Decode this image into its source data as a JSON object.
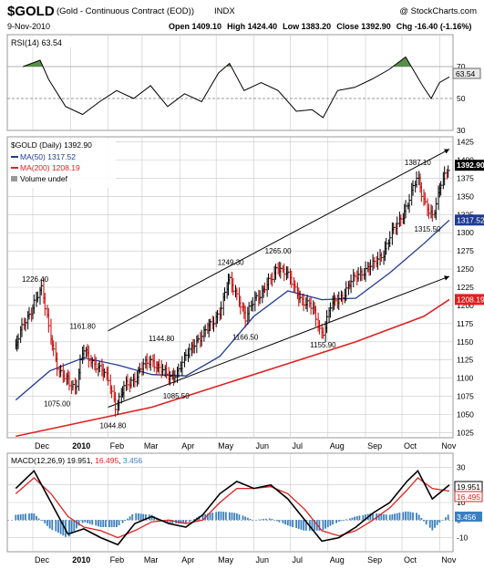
{
  "header": {
    "symbol": "$GOLD",
    "description": "(Gold - Continuous Contract (EOD))",
    "exchange": "INDX",
    "source": "@ StockCharts.com",
    "date": "9-Nov-2010",
    "quote": {
      "open_label": "Open",
      "open": "1409.10",
      "high_label": "High",
      "high": "1424.40",
      "low_label": "Low",
      "low": "1383.20",
      "close_label": "Close",
      "close": "1392.90",
      "chg_label": "Chg",
      "chg": "-16.40 (-1.16%)"
    }
  },
  "colors": {
    "price_bar_up": "#000000",
    "price_bar_down": "#cc0000",
    "ma50": "#1f3a93",
    "ma200": "#e02020",
    "rsi_fill": "#3a7d2a",
    "macd_line": "#000000",
    "signal_line": "#e02020",
    "histogram": "#3a7fc0",
    "grid": "#c8c8c8"
  },
  "rsi_panel": {
    "legend": "RSI(14) 63.54",
    "current_label": "63.54",
    "levels": [
      70,
      50,
      30
    ],
    "level_labels": [
      "70",
      "50",
      "30"
    ]
  },
  "price_panel": {
    "legend_title": "$GOLD (Daily) 1392.90",
    "legend_ma50": "MA(50) 1317.52",
    "legend_ma200": "MA(200) 1208.19",
    "legend_volume": "Volume undef",
    "last_price_label": "1392.90",
    "ma50_label": "1317.52",
    "ma200_label": "1208.19"
  },
  "macd_panel": {
    "legend_prefix": "MACD(12,26,9)",
    "legend_macd": "19.951",
    "legend_signal": "16.495",
    "legend_hist": "3.456",
    "label_macd": "19.951",
    "label_signal": "16.495",
    "label_hist": "3.456"
  },
  "chart_data": [
    {
      "type": "line",
      "panel": "rsi",
      "series": [
        {
          "name": "RSI(14)",
          "x": [
            "2009-11-23",
            "2009-12-07",
            "2009-12-14",
            "2009-12-28",
            "2010-01-11",
            "2010-01-25",
            "2010-02-08",
            "2010-02-22",
            "2010-03-08",
            "2010-03-22",
            "2010-04-05",
            "2010-04-19",
            "2010-05-03",
            "2010-05-12",
            "2010-05-24",
            "2010-06-07",
            "2010-06-21",
            "2010-07-06",
            "2010-07-19",
            "2010-07-28",
            "2010-08-09",
            "2010-08-23",
            "2010-09-06",
            "2010-09-20",
            "2010-10-04",
            "2010-10-18",
            "2010-10-25",
            "2010-11-01",
            "2010-11-09"
          ],
          "values": [
            70,
            74,
            62,
            45,
            40,
            48,
            55,
            50,
            58,
            45,
            53,
            48,
            66,
            72,
            55,
            60,
            55,
            42,
            43,
            38,
            55,
            57,
            62,
            68,
            76,
            58,
            50,
            60,
            63.54
          ]
        }
      ],
      "ylim": [
        30,
        90
      ]
    },
    {
      "type": "bar",
      "panel": "price",
      "title": "$GOLD (Daily) 1392.90",
      "x_tick_labels": [
        "Dec",
        "2010",
        "Feb",
        "Mar",
        "Apr",
        "May",
        "Jun",
        "Jul",
        "Aug",
        "Sep",
        "Oct",
        "Nov"
      ],
      "x_tick_dates": [
        "2009-12-01",
        "2010-01-01",
        "2010-02-01",
        "2010-03-01",
        "2010-04-01",
        "2010-05-01",
        "2010-06-01",
        "2010-07-01",
        "2010-08-01",
        "2010-09-01",
        "2010-10-01",
        "2010-11-01"
      ],
      "y_ticks": [
        1025,
        1050,
        1075,
        1100,
        1125,
        1150,
        1175,
        1200,
        1225,
        1250,
        1275,
        1300,
        1325,
        1350,
        1375,
        1400,
        1425
      ],
      "ylim": [
        1018,
        1432
      ],
      "close_series": {
        "x": [
          "2009-11-17",
          "2009-11-24",
          "2009-12-02",
          "2009-12-09",
          "2009-12-16",
          "2009-12-23",
          "2009-12-30",
          "2010-01-06",
          "2010-01-12",
          "2010-01-19",
          "2010-01-26",
          "2010-02-02",
          "2010-02-08",
          "2010-02-16",
          "2010-02-23",
          "2010-03-02",
          "2010-03-09",
          "2010-03-17",
          "2010-03-24",
          "2010-03-31",
          "2010-04-07",
          "2010-04-14",
          "2010-04-21",
          "2010-04-28",
          "2010-05-05",
          "2010-05-12",
          "2010-05-19",
          "2010-05-26",
          "2010-06-02",
          "2010-06-09",
          "2010-06-16",
          "2010-06-21",
          "2010-06-28",
          "2010-07-06",
          "2010-07-13",
          "2010-07-20",
          "2010-07-28",
          "2010-08-04",
          "2010-08-11",
          "2010-08-18",
          "2010-08-25",
          "2010-09-01",
          "2010-09-08",
          "2010-09-15",
          "2010-09-22",
          "2010-09-29",
          "2010-10-06",
          "2010-10-14",
          "2010-10-20",
          "2010-10-27",
          "2010-11-03",
          "2010-11-09"
        ],
        "values": [
          1140,
          1175,
          1200,
          1222,
          1160,
          1105,
          1100,
          1085,
          1140,
          1125,
          1110,
          1100,
          1060,
          1090,
          1100,
          1115,
          1125,
          1112,
          1100,
          1110,
          1130,
          1150,
          1160,
          1175,
          1195,
          1235,
          1215,
          1180,
          1210,
          1220,
          1235,
          1255,
          1245,
          1220,
          1205,
          1195,
          1160,
          1200,
          1210,
          1225,
          1240,
          1250,
          1255,
          1270,
          1295,
          1315,
          1340,
          1375,
          1345,
          1320,
          1370,
          1392.9
        ]
      },
      "ma50_series": {
        "name": "MA(50)",
        "x": [
          "2009-11-17",
          "2009-12-15",
          "2010-01-12",
          "2010-02-09",
          "2010-03-09",
          "2010-04-06",
          "2010-05-04",
          "2010-06-01",
          "2010-06-29",
          "2010-07-27",
          "2010-08-24",
          "2010-09-21",
          "2010-10-19",
          "2010-11-09"
        ],
        "values": [
          1070,
          1110,
          1128,
          1118,
          1105,
          1103,
          1130,
          1185,
          1220,
          1208,
          1210,
          1245,
          1285,
          1317.52
        ]
      },
      "ma200_series": {
        "name": "MA(200)",
        "x": [
          "2009-11-17",
          "2010-01-12",
          "2010-03-09",
          "2010-05-04",
          "2010-06-29",
          "2010-08-24",
          "2010-10-19",
          "2010-11-09"
        ],
        "values": [
          1020,
          1040,
          1060,
          1090,
          1120,
          1150,
          1185,
          1208.19
        ]
      },
      "annotations": [
        {
          "text": "1226.40",
          "x": "2009-12-03",
          "y": 1226.4
        },
        {
          "text": "1161.80",
          "x": "2010-01-11",
          "y": 1161.8
        },
        {
          "text": "1075.00",
          "x": "2009-12-21",
          "y": 1075.0
        },
        {
          "text": "1144.80",
          "x": "2010-03-17",
          "y": 1144.8
        },
        {
          "text": "1044.80",
          "x": "2010-02-05",
          "y": 1044.8
        },
        {
          "text": "1085.50",
          "x": "2010-03-29",
          "y": 1085.5
        },
        {
          "text": "1249.30",
          "x": "2010-05-13",
          "y": 1249.3
        },
        {
          "text": "1166.50",
          "x": "2010-05-25",
          "y": 1166.5
        },
        {
          "text": "1265.00",
          "x": "2010-06-21",
          "y": 1265.0
        },
        {
          "text": "1155.90",
          "x": "2010-07-28",
          "y": 1155.9
        },
        {
          "text": "1387.10",
          "x": "2010-10-14",
          "y": 1387.1
        },
        {
          "text": "1315.50",
          "x": "2010-10-22",
          "y": 1315.5
        }
      ],
      "trendlines": [
        {
          "from": [
            "2010-02-01",
            1165
          ],
          "to": [
            "2010-11-09",
            1415
          ]
        },
        {
          "from": [
            "2010-02-01",
            1060
          ],
          "to": [
            "2010-11-09",
            1240
          ]
        }
      ]
    },
    {
      "type": "line",
      "panel": "macd",
      "y_ticks": [
        -10,
        0,
        10,
        20,
        30
      ],
      "ylim": [
        -18,
        38
      ],
      "series": [
        {
          "name": "MACD(12,26,9)",
          "x": [
            "2009-11-17",
            "2009-12-02",
            "2009-12-16",
            "2009-12-30",
            "2010-01-12",
            "2010-01-26",
            "2010-02-09",
            "2010-02-23",
            "2010-03-09",
            "2010-03-23",
            "2010-04-06",
            "2010-04-20",
            "2010-05-04",
            "2010-05-18",
            "2010-06-01",
            "2010-06-15",
            "2010-06-29",
            "2010-07-13",
            "2010-07-27",
            "2010-08-10",
            "2010-08-24",
            "2010-09-07",
            "2010-09-21",
            "2010-10-05",
            "2010-10-14",
            "2010-10-26",
            "2010-11-09"
          ],
          "values": [
            18,
            28,
            10,
            -8,
            -5,
            -10,
            -14,
            -2,
            2,
            -2,
            -4,
            3,
            15,
            22,
            18,
            20,
            12,
            0,
            -12,
            -10,
            -4,
            4,
            10,
            22,
            28,
            12,
            19.951
          ]
        },
        {
          "name": "Signal",
          "x": [
            "2009-11-17",
            "2009-12-02",
            "2009-12-16",
            "2009-12-30",
            "2010-01-12",
            "2010-01-26",
            "2010-02-09",
            "2010-02-23",
            "2010-03-09",
            "2010-03-23",
            "2010-04-06",
            "2010-04-20",
            "2010-05-04",
            "2010-05-18",
            "2010-06-01",
            "2010-06-15",
            "2010-06-29",
            "2010-07-13",
            "2010-07-27",
            "2010-08-10",
            "2010-08-24",
            "2010-09-07",
            "2010-09-21",
            "2010-10-05",
            "2010-10-14",
            "2010-10-26",
            "2010-11-09"
          ],
          "values": [
            15,
            24,
            15,
            2,
            -4,
            -6,
            -10,
            -6,
            -1,
            0,
            -2,
            0,
            10,
            18,
            18,
            19,
            15,
            6,
            -6,
            -9,
            -6,
            0,
            7,
            17,
            24,
            18,
            16.495
          ]
        }
      ]
    }
  ]
}
